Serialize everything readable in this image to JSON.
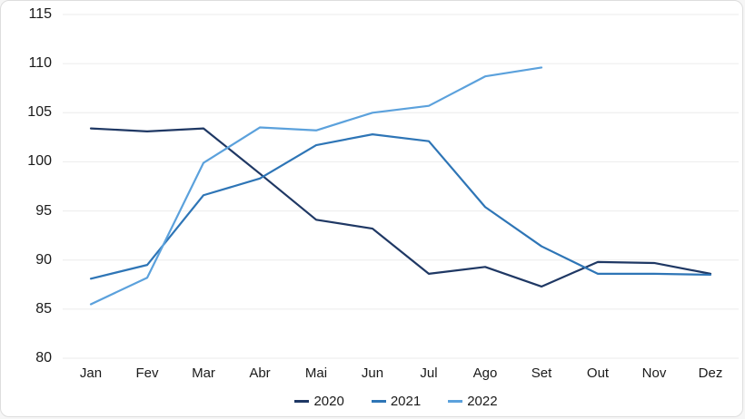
{
  "chart_data": {
    "type": "line",
    "title": "",
    "xlabel": "",
    "ylabel": "",
    "x": [
      "Jan",
      "Fev",
      "Mar",
      "Abr",
      "Mai",
      "Jun",
      "Jul",
      "Ago",
      "Set",
      "Out",
      "Nov",
      "Dez"
    ],
    "series": [
      {
        "name": "2020",
        "color": "#1F3864",
        "values": [
          103.4,
          103.1,
          103.4,
          98.8,
          94.1,
          93.2,
          88.6,
          89.3,
          87.3,
          89.8,
          89.7,
          88.6
        ]
      },
      {
        "name": "2021",
        "color": "#2E75B6",
        "values": [
          88.1,
          89.5,
          96.6,
          98.3,
          101.7,
          102.8,
          102.1,
          95.4,
          91.4,
          88.6,
          88.6,
          88.5
        ]
      },
      {
        "name": "2022",
        "color": "#5BA1DC",
        "values": [
          85.5,
          88.2,
          99.9,
          103.5,
          103.2,
          105.0,
          105.7,
          108.7,
          109.6,
          null,
          null,
          null
        ]
      }
    ],
    "ylim": [
      80,
      115
    ],
    "yticks": [
      80,
      85,
      90,
      95,
      100,
      105,
      110,
      115
    ],
    "grid": "horizontal-only",
    "legend_position": "bottom-center"
  },
  "styles": {
    "grid_color": "#EBEBEB",
    "text_color": "#1A1A1A",
    "background": "#FFFFFF",
    "border_color": "#DDDDDD"
  }
}
